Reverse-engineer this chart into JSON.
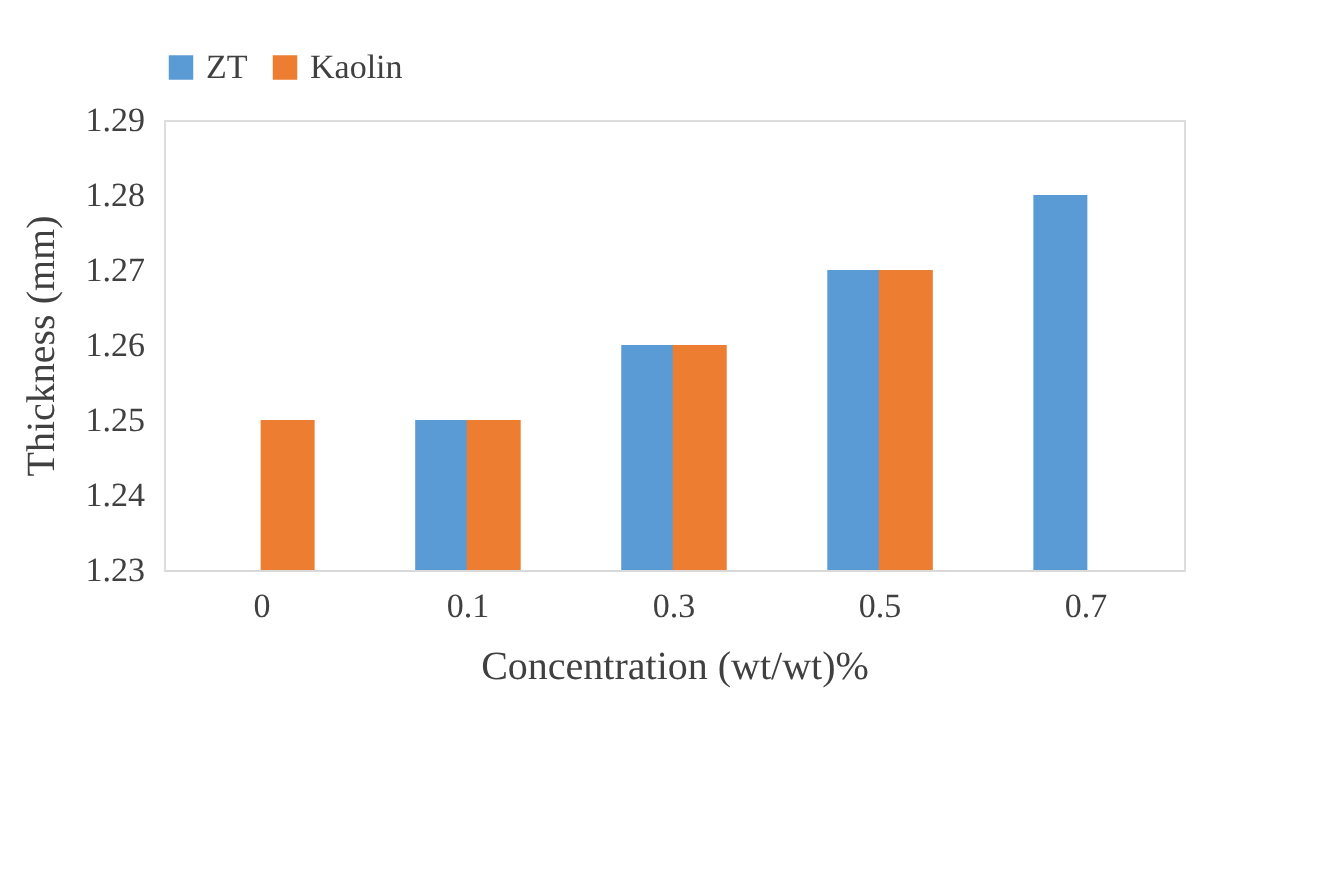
{
  "chart_data": {
    "type": "bar",
    "xlabel": "Concentration (wt/wt)%",
    "ylabel": "Thickness (mm)",
    "categories": [
      "0",
      "0.1",
      "0.3",
      "0.5",
      "0.7"
    ],
    "series": [
      {
        "name": "ZT",
        "color": "#5b9bd5",
        "values": [
          null,
          1.25,
          1.26,
          1.27,
          1.28
        ]
      },
      {
        "name": "Kaolin",
        "color": "#ed7d31",
        "values": [
          1.25,
          1.25,
          1.26,
          1.27,
          null
        ]
      }
    ],
    "ylim": [
      1.23,
      1.29
    ],
    "yticks": [
      1.23,
      1.24,
      1.25,
      1.26,
      1.27,
      1.28,
      1.29
    ],
    "grid": false,
    "legend": "top"
  }
}
